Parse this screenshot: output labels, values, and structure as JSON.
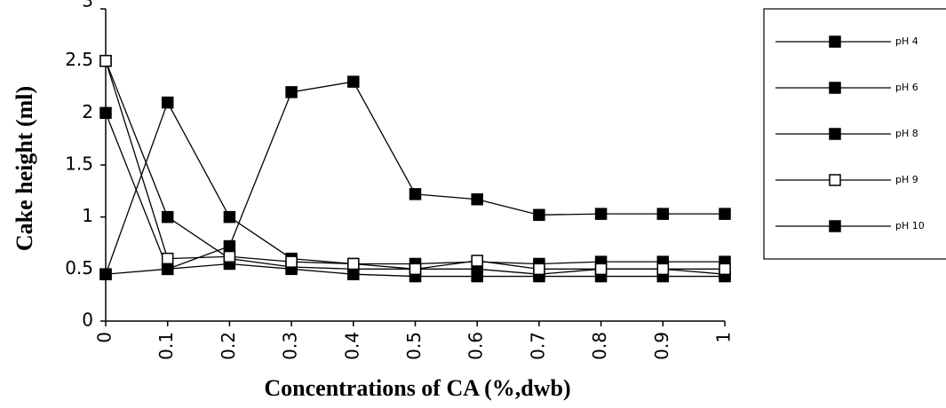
{
  "chart_data": {
    "type": "line",
    "x_label": "Concentrations of CA (%,dwb)",
    "y_label": "Cake height (ml)",
    "x": [
      0,
      0.1,
      0.2,
      0.3,
      0.4,
      0.5,
      0.6,
      0.7,
      0.8,
      0.9,
      1
    ],
    "xlim": [
      0,
      1
    ],
    "xticks": [
      0,
      0.1,
      0.2,
      0.3,
      0.4,
      0.5,
      0.6,
      0.7,
      0.8,
      0.9,
      1
    ],
    "ylim": [
      0,
      3
    ],
    "yticks": [
      0,
      0.5,
      1,
      1.5,
      2,
      2.5,
      3
    ],
    "legend": "right",
    "series": [
      {
        "name": "pH 4",
        "color": "#000000",
        "marker_fill": "#000000",
        "values": [
          2.5,
          1.0,
          0.6,
          0.52,
          0.5,
          0.5,
          0.5,
          0.45,
          0.5,
          0.5,
          0.45
        ]
      },
      {
        "name": "pH 6",
        "color": "#000000",
        "marker_fill": "#000000",
        "values": [
          2.0,
          0.5,
          0.55,
          0.5,
          0.45,
          0.43,
          0.43,
          0.43,
          0.43,
          0.43,
          0.43
        ]
      },
      {
        "name": "pH 8",
        "color": "#000000",
        "marker_fill": "#000000",
        "values": [
          0.45,
          2.1,
          1.0,
          0.6,
          0.55,
          0.55,
          0.57,
          0.55,
          0.57,
          0.57,
          0.57
        ]
      },
      {
        "name": "pH 9",
        "color": "#000000",
        "marker_fill": "#ffffff",
        "values": [
          2.5,
          0.6,
          0.62,
          0.57,
          0.55,
          0.5,
          0.58,
          0.5,
          0.5,
          0.5,
          0.5
        ]
      },
      {
        "name": "pH 10",
        "color": "#000000",
        "marker_fill": "#000000",
        "values": [
          0.45,
          0.5,
          0.72,
          2.2,
          2.3,
          1.22,
          1.17,
          1.02,
          1.03,
          1.03,
          1.03
        ]
      }
    ]
  }
}
